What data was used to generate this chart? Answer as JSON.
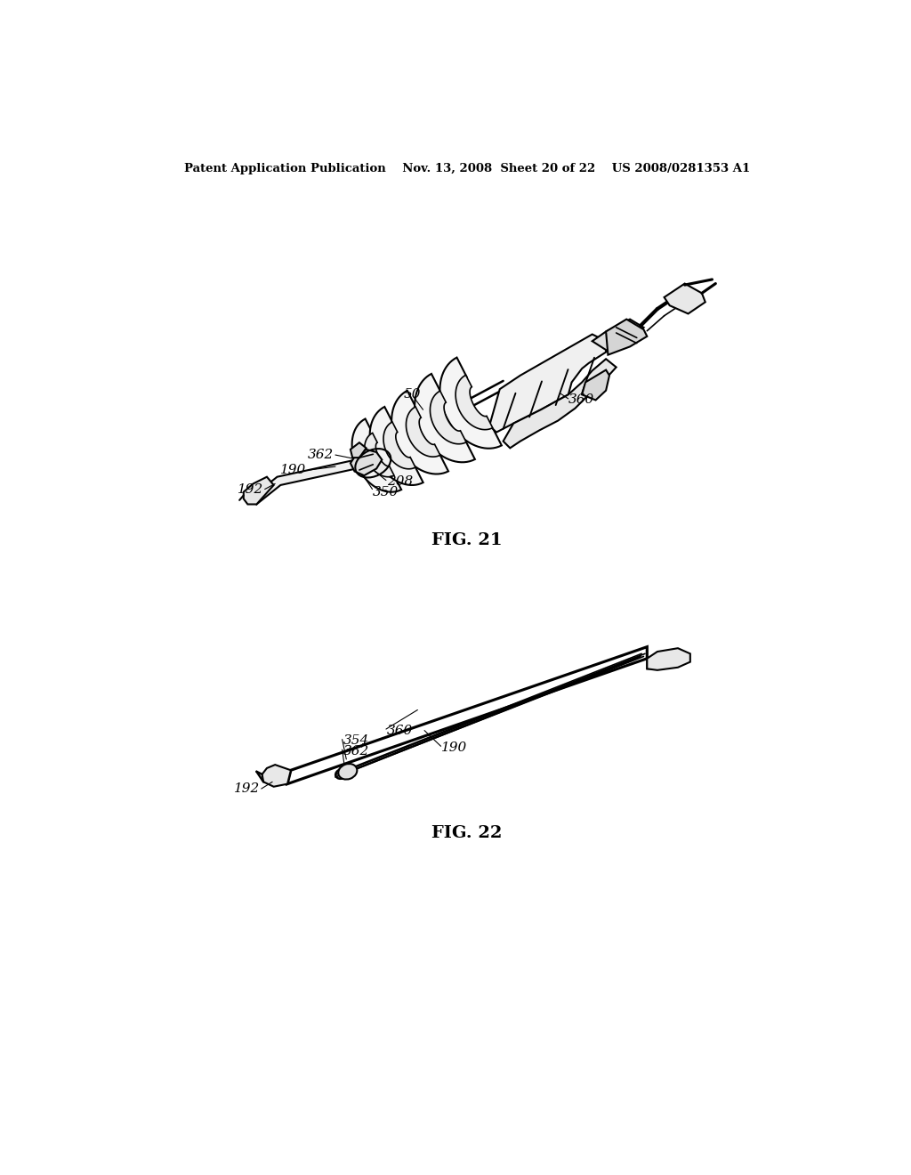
{
  "background_color": "#ffffff",
  "header_text": "Patent Application Publication    Nov. 13, 2008  Sheet 20 of 22    US 2008/0281353 A1",
  "fig21_label": "FIG. 21",
  "fig22_label": "FIG. 22",
  "line_color": "#000000",
  "lw": 1.5,
  "annotation_fontsize": 11,
  "header_fontsize": 9.5,
  "fig_label_fontsize": 14
}
